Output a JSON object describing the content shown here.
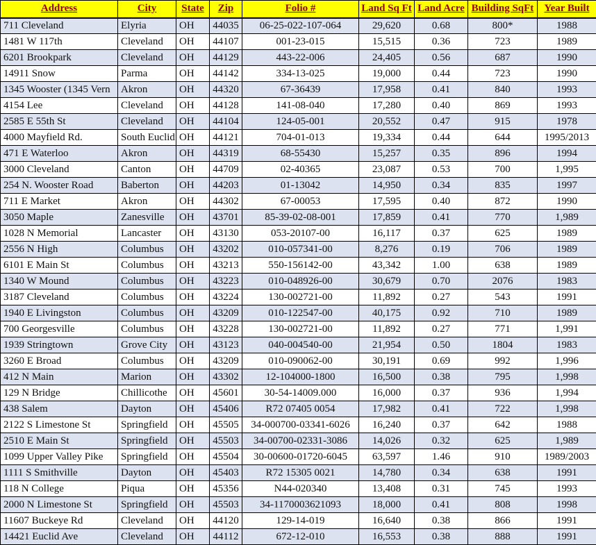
{
  "colors": {
    "header_bg": "#ffff00",
    "header_text": "#980000",
    "row_alt_bg": "#dce2f0",
    "grid_line": "#000000",
    "body_text": "#111111"
  },
  "table": {
    "columns": [
      "Address",
      "City",
      "State",
      "Zip",
      "Folio #",
      "Land Sq Ft",
      "Land Acre",
      "Building SqFt",
      "Year Built"
    ],
    "rows": [
      [
        "711 Cleveland",
        "Elyria",
        "OH",
        "44035",
        "06-25-022-107-064",
        "29,620",
        "0.68",
        "800*",
        "1988"
      ],
      [
        "1481 W 117th",
        "Cleveland",
        "OH",
        "44107",
        "001-23-015",
        "15,515",
        "0.36",
        "723",
        "1989"
      ],
      [
        "6201 Brookpark",
        "Cleveland",
        "OH",
        "44129",
        "443-22-006",
        "24,405",
        "0.56",
        "687",
        "1990"
      ],
      [
        "14911 Snow",
        "Parma",
        "OH",
        "44142",
        "334-13-025",
        "19,000",
        "0.44",
        "723",
        "1990"
      ],
      [
        "1345 Wooster (1345 Vern",
        "Akron",
        "OH",
        "44320",
        "67-36439",
        "17,958",
        "0.41",
        "840",
        "1993"
      ],
      [
        "4154 Lee",
        "Cleveland",
        "OH",
        "44128",
        "141-08-040",
        "17,280",
        "0.40",
        "869",
        "1993"
      ],
      [
        "2585 E 55th St",
        "Cleveland",
        "OH",
        "44104",
        "124-05-001",
        "20,552",
        "0.47",
        "915",
        "1978"
      ],
      [
        "4000 Mayfield Rd.",
        "South Euclid",
        "OH",
        "44121",
        "704-01-013",
        "19,334",
        "0.44",
        "644",
        "1995/2013"
      ],
      [
        "471 E Waterloo",
        "Akron",
        "OH",
        "44319",
        "68-55430",
        "15,257",
        "0.35",
        "896",
        "1994"
      ],
      [
        "3000 Cleveland",
        "Canton",
        "OH",
        "44709",
        "02-40365",
        "23,087",
        "0.53",
        "700",
        "1,995"
      ],
      [
        "254 N. Wooster Road",
        "Baberton",
        "OH",
        "44203",
        "01-13042",
        "14,950",
        "0.34",
        "835",
        "1997"
      ],
      [
        "711 E Market",
        "Akron",
        "OH",
        "44302",
        "67-00053",
        "17,595",
        "0.40",
        "872",
        "1990"
      ],
      [
        "3050 Maple",
        "Zanesville",
        "OH",
        "43701",
        "85-39-02-08-001",
        "17,859",
        "0.41",
        "770",
        "1,989"
      ],
      [
        "1028 N Memorial",
        "Lancaster",
        "OH",
        "43130",
        "053-20107-00",
        "16,117",
        "0.37",
        "625",
        "1989"
      ],
      [
        "2556 N High",
        "Columbus",
        "OH",
        "43202",
        "010-057341-00",
        "8,276",
        "0.19",
        "706",
        "1989"
      ],
      [
        "6101 E Main St",
        "Columbus",
        "OH",
        "43213",
        "550-156142-00",
        "43,342",
        "1.00",
        "638",
        "1989"
      ],
      [
        "1340 W Mound",
        "Columbus",
        "OH",
        "43223",
        "010-048926-00",
        "30,679",
        "0.70",
        "2076",
        "1983"
      ],
      [
        "3187 Cleveland",
        "Columbus",
        "OH",
        "43224",
        "130-002721-00",
        "11,892",
        "0.27",
        "543",
        "1991"
      ],
      [
        "1940 E Livingston",
        "Columbus",
        "OH",
        "43209",
        "010-122547-00",
        "40,175",
        "0.92",
        "710",
        "1989"
      ],
      [
        "700 Georgesville",
        "Columbus",
        "OH",
        "43228",
        "130-002721-00",
        "11,892",
        "0.27",
        "771",
        "1,991"
      ],
      [
        "1939 Stringtown",
        "Grove City",
        "OH",
        "43123",
        "040-004540-00",
        "21,954",
        "0.50",
        "1804",
        "1983"
      ],
      [
        "3260 E Broad",
        "Columbus",
        "OH",
        "43209",
        "010-090062-00",
        "30,191",
        "0.69",
        "992",
        "1,996"
      ],
      [
        "412 N Main",
        "Marion",
        "OH",
        "43302",
        "12-104000-1800",
        "16,500",
        "0.38",
        "795",
        "1,998"
      ],
      [
        "129 N Bridge",
        "Chillicothe",
        "OH",
        "45601",
        "30-54-14009.000",
        "16,000",
        "0.37",
        "936",
        "1,994"
      ],
      [
        "438 Salem",
        "Dayton",
        "OH",
        "45406",
        "R72 07405 0054",
        "17,982",
        "0.41",
        "722",
        "1,998"
      ],
      [
        "2122 S Limestone St",
        "Springfield",
        "OH",
        "45505",
        "34-000700-03341-6026",
        "16,240",
        "0.37",
        "642",
        "1988"
      ],
      [
        "2510 E Main St",
        "Springfield",
        "OH",
        "45503",
        "34-00700-02331-3086",
        "14,026",
        "0.32",
        "625",
        "1,989"
      ],
      [
        "1099 Upper Valley Pike",
        "Springfield",
        "OH",
        "45504",
        "30-00600-01720-6045",
        "63,597",
        "1.46",
        "910",
        "1989/2003"
      ],
      [
        "1111 S Smithville",
        "Dayton",
        "OH",
        "45403",
        "R72 15305 0021",
        "14,780",
        "0.34",
        "638",
        "1991"
      ],
      [
        "118 N College",
        "Piqua",
        "OH",
        "45356",
        "N44-020340",
        "13,408",
        "0.31",
        "745",
        "1993"
      ],
      [
        "2000 N Limestone St",
        "Springfield",
        "OH",
        "45503",
        "34-1170003621093",
        "18,000",
        "0.41",
        "808",
        "1998"
      ],
      [
        "11607 Buckeye Rd",
        "Cleveland",
        "OH",
        "44120",
        "129-14-019",
        "16,640",
        "0.38",
        "866",
        "1991"
      ],
      [
        "14421 Euclid Ave",
        "Cleveland",
        "OH",
        "44112",
        "672-12-010",
        "16,553",
        "0.38",
        "888",
        "1991"
      ]
    ]
  }
}
